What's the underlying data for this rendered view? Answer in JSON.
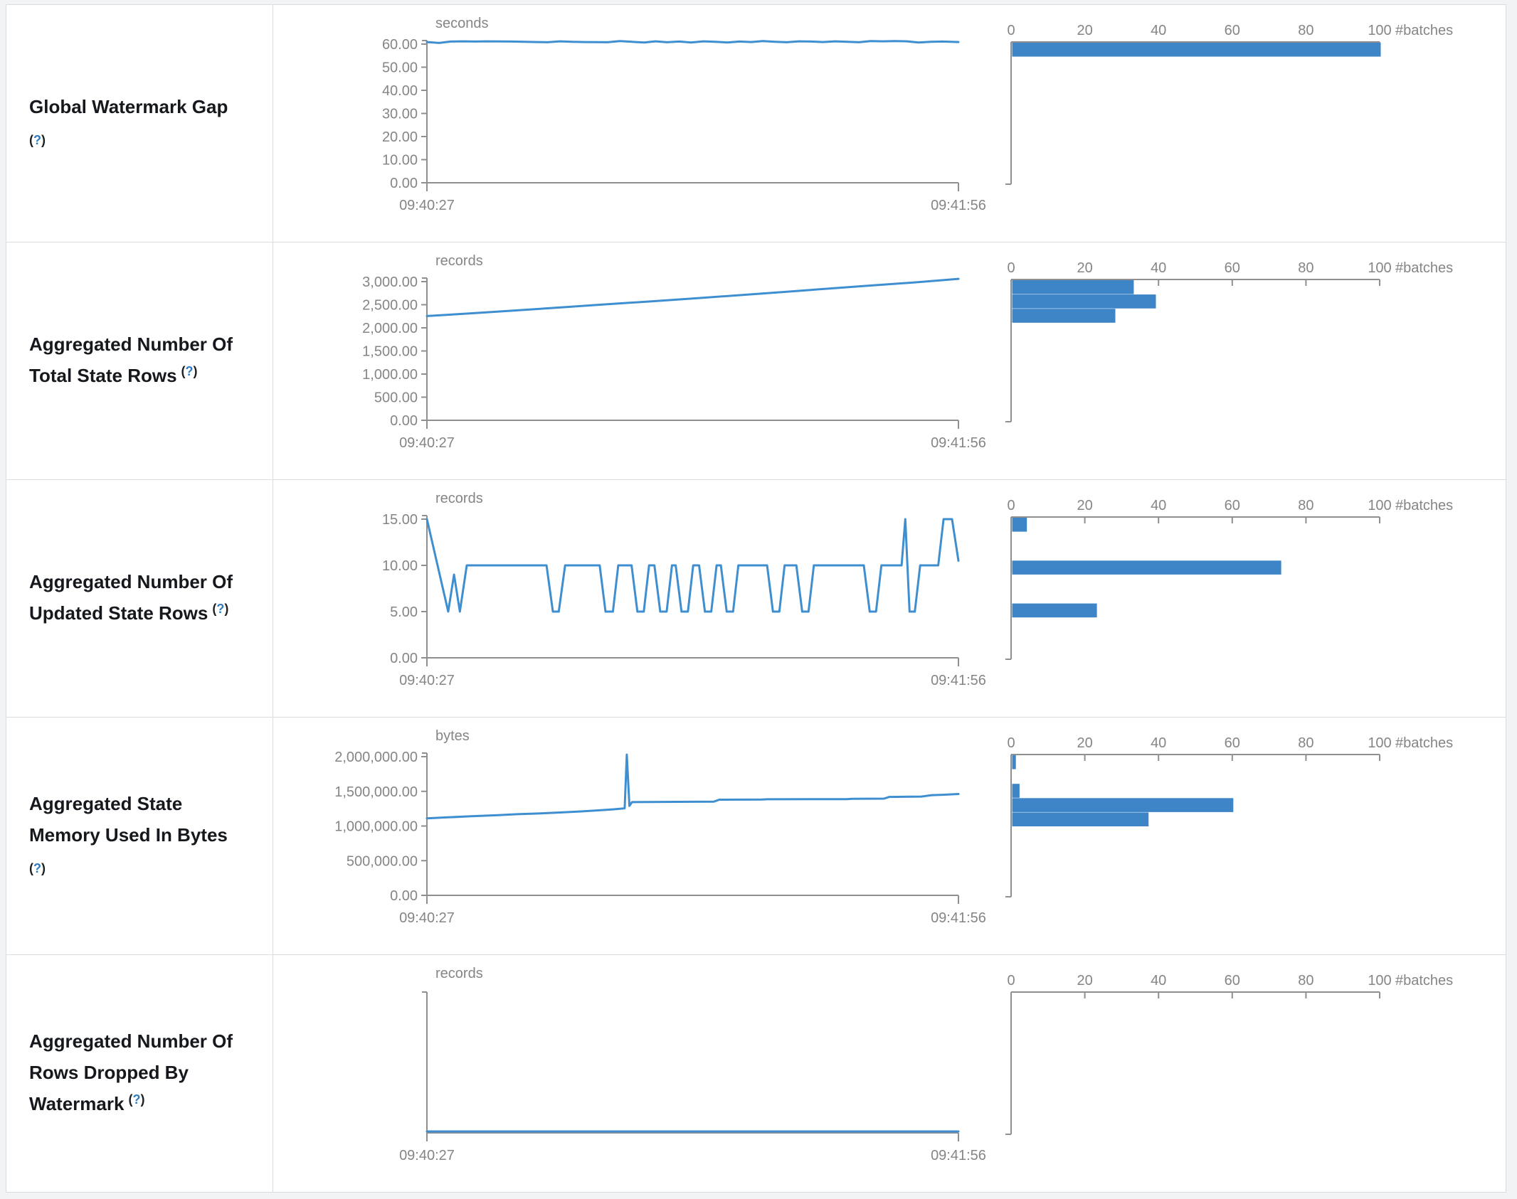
{
  "page": {
    "background": "#f1f3f5",
    "panel_background": "#ffffff",
    "border_color": "#d9dde2"
  },
  "colors": {
    "bar": "#3d85c6",
    "line": "#3e8ed0",
    "axis": "#8f8f8f",
    "axis_text": "#858585",
    "label_text": "#15181d",
    "help_link": "#2e7bbf"
  },
  "time_axis": {
    "start": "09:40:27",
    "end": "09:41:56"
  },
  "histogram_axis": {
    "tick_labels": [
      "0",
      "20",
      "40",
      "60",
      "80",
      "100"
    ],
    "tick_values": [
      0,
      20,
      40,
      60,
      80,
      100
    ],
    "label": "#batches",
    "max": 100
  },
  "chart_data": [
    {
      "label": "Global Watermark Gap",
      "label_lines": [
        "Global Watermark Gap"
      ],
      "help": "(?)",
      "help_inline": false,
      "type": "line",
      "unit": "seconds",
      "x_start": "09:40:27",
      "x_end": "09:41:56",
      "y_top": 60,
      "y_tick_values": [
        0,
        10,
        20,
        30,
        40,
        50,
        60
      ],
      "y_tick_labels": [
        "0.00",
        "10.00",
        "20.00",
        "30.00",
        "40.00",
        "50.00",
        "60.00"
      ],
      "series": [
        [
          0,
          60.9
        ],
        [
          0.023,
          60.5
        ],
        [
          0.045,
          61.1
        ],
        [
          0.068,
          61.2
        ],
        [
          0.09,
          61.1
        ],
        [
          0.113,
          61.2
        ],
        [
          0.136,
          61.15
        ],
        [
          0.159,
          61.1
        ],
        [
          0.182,
          61.0
        ],
        [
          0.205,
          60.9
        ],
        [
          0.227,
          60.8
        ],
        [
          0.25,
          61.2
        ],
        [
          0.273,
          61.0
        ],
        [
          0.295,
          60.9
        ],
        [
          0.318,
          60.85
        ],
        [
          0.34,
          60.8
        ],
        [
          0.363,
          61.3
        ],
        [
          0.386,
          61.0
        ],
        [
          0.409,
          60.7
        ],
        [
          0.43,
          61.2
        ],
        [
          0.452,
          60.8
        ],
        [
          0.475,
          61.1
        ],
        [
          0.497,
          60.7
        ],
        [
          0.52,
          61.2
        ],
        [
          0.542,
          61.0
        ],
        [
          0.565,
          60.7
        ],
        [
          0.588,
          61.1
        ],
        [
          0.61,
          60.9
        ],
        [
          0.632,
          61.3
        ],
        [
          0.655,
          61.0
        ],
        [
          0.677,
          60.8
        ],
        [
          0.7,
          61.2
        ],
        [
          0.723,
          61.1
        ],
        [
          0.745,
          60.9
        ],
        [
          0.768,
          61.2
        ],
        [
          0.79,
          61.0
        ],
        [
          0.813,
          60.8
        ],
        [
          0.835,
          61.3
        ],
        [
          0.858,
          61.2
        ],
        [
          0.88,
          61.3
        ],
        [
          0.903,
          61.2
        ],
        [
          0.925,
          60.7
        ],
        [
          0.948,
          61.0
        ],
        [
          0.97,
          61.1
        ],
        [
          1,
          60.9
        ]
      ],
      "hist_type": "bar",
      "hist_unit": "#batches",
      "hist_bars": [
        {
          "slot": 0,
          "count": 100
        }
      ]
    },
    {
      "label": "Aggregated Number Of Total State Rows",
      "label_lines": [
        "Aggregated Number Of",
        "Total State Rows"
      ],
      "help": "(?)",
      "help_inline": true,
      "type": "line",
      "unit": "records",
      "x_start": "09:40:27",
      "x_end": "09:41:56",
      "y_top": 3000,
      "y_tick_values": [
        0,
        500,
        1000,
        1500,
        2000,
        2500,
        3000
      ],
      "y_tick_labels": [
        "0.00",
        "500.00",
        "1,000.00",
        "1,500.00",
        "2,000.00",
        "2,500.00",
        "3,000.00"
      ],
      "series": [
        [
          0,
          2255
        ],
        [
          0.08,
          2310
        ],
        [
          0.16,
          2370
        ],
        [
          0.25,
          2440
        ],
        [
          0.33,
          2505
        ],
        [
          0.42,
          2570
        ],
        [
          0.5,
          2635
        ],
        [
          0.58,
          2700
        ],
        [
          0.67,
          2775
        ],
        [
          0.75,
          2845
        ],
        [
          0.83,
          2910
        ],
        [
          0.92,
          2985
        ],
        [
          1,
          3060
        ]
      ],
      "hist_type": "bar",
      "hist_unit": "#batches",
      "hist_bars": [
        {
          "slot": 0,
          "count": 33
        },
        {
          "slot": 1,
          "count": 39
        },
        {
          "slot": 2,
          "count": 28
        }
      ]
    },
    {
      "label": "Aggregated Number Of Updated State Rows",
      "label_lines": [
        "Aggregated Number Of",
        "Updated State Rows"
      ],
      "help": "(?)",
      "help_inline": true,
      "type": "line",
      "unit": "records",
      "x_start": "09:40:27",
      "x_end": "09:41:56",
      "y_top": 15,
      "y_tick_values": [
        0,
        5,
        10,
        15
      ],
      "y_tick_labels": [
        "0.00",
        "5.00",
        "10.00",
        "15.00"
      ],
      "series": [
        [
          0,
          15
        ],
        [
          0.04,
          5
        ],
        [
          0.051,
          9
        ],
        [
          0.062,
          5
        ],
        [
          0.075,
          10
        ],
        [
          0.225,
          10
        ],
        [
          0.237,
          5
        ],
        [
          0.248,
          5
        ],
        [
          0.26,
          10
        ],
        [
          0.325,
          10
        ],
        [
          0.336,
          5
        ],
        [
          0.35,
          5
        ],
        [
          0.36,
          10
        ],
        [
          0.385,
          10
        ],
        [
          0.396,
          5
        ],
        [
          0.408,
          5
        ],
        [
          0.418,
          10
        ],
        [
          0.428,
          10
        ],
        [
          0.439,
          5
        ],
        [
          0.451,
          5
        ],
        [
          0.461,
          10
        ],
        [
          0.468,
          10
        ],
        [
          0.479,
          5
        ],
        [
          0.491,
          5
        ],
        [
          0.501,
          10
        ],
        [
          0.512,
          10
        ],
        [
          0.523,
          5
        ],
        [
          0.535,
          5
        ],
        [
          0.545,
          10
        ],
        [
          0.553,
          10
        ],
        [
          0.564,
          5
        ],
        [
          0.576,
          5
        ],
        [
          0.586,
          10
        ],
        [
          0.64,
          10
        ],
        [
          0.651,
          5
        ],
        [
          0.663,
          5
        ],
        [
          0.673,
          10
        ],
        [
          0.695,
          10
        ],
        [
          0.706,
          5
        ],
        [
          0.718,
          5
        ],
        [
          0.728,
          10
        ],
        [
          0.822,
          10
        ],
        [
          0.833,
          5
        ],
        [
          0.845,
          5
        ],
        [
          0.855,
          10
        ],
        [
          0.893,
          10
        ],
        [
          0.9,
          15
        ],
        [
          0.908,
          5
        ],
        [
          0.918,
          5
        ],
        [
          0.928,
          10
        ],
        [
          0.962,
          10
        ],
        [
          0.972,
          15
        ],
        [
          0.988,
          15
        ],
        [
          1,
          10.5
        ]
      ],
      "hist_type": "bar",
      "hist_unit": "#batches",
      "hist_bars": [
        {
          "slot": 0,
          "count": 4
        },
        {
          "slot": 3,
          "count": 73
        },
        {
          "slot": 6,
          "count": 23
        }
      ]
    },
    {
      "label": "Aggregated State Memory Used In Bytes",
      "label_lines": [
        "Aggregated State",
        "Memory Used In Bytes"
      ],
      "help": "(?)",
      "help_inline": false,
      "type": "line",
      "unit": "bytes",
      "x_start": "09:40:27",
      "x_end": "09:41:56",
      "y_top": 2000000,
      "y_tick_values": [
        0,
        500000,
        1000000,
        1500000,
        2000000
      ],
      "y_tick_labels": [
        "0.00",
        "500,000.00",
        "1,000,000.00",
        "1,500,000.00",
        "2,000,000.00"
      ],
      "series": [
        [
          0,
          1110000
        ],
        [
          0.04,
          1125000
        ],
        [
          0.08,
          1140000
        ],
        [
          0.13,
          1155000
        ],
        [
          0.17,
          1170000
        ],
        [
          0.21,
          1180000
        ],
        [
          0.25,
          1195000
        ],
        [
          0.29,
          1210000
        ],
        [
          0.32,
          1225000
        ],
        [
          0.35,
          1240000
        ],
        [
          0.365,
          1250000
        ],
        [
          0.372,
          1255000
        ],
        [
          0.376,
          2030000
        ],
        [
          0.381,
          1290000
        ],
        [
          0.386,
          1345000
        ],
        [
          0.5,
          1350000
        ],
        [
          0.54,
          1352000
        ],
        [
          0.55,
          1380000
        ],
        [
          0.63,
          1383000
        ],
        [
          0.64,
          1386000
        ],
        [
          0.79,
          1388000
        ],
        [
          0.8,
          1392000
        ],
        [
          0.86,
          1395000
        ],
        [
          0.87,
          1420000
        ],
        [
          0.93,
          1425000
        ],
        [
          0.95,
          1445000
        ],
        [
          0.97,
          1450000
        ],
        [
          1,
          1462000
        ]
      ],
      "hist_type": "bar",
      "hist_unit": "#batches",
      "hist_bars": [
        {
          "slot": 0,
          "count": 1
        },
        {
          "slot": 2,
          "count": 2
        },
        {
          "slot": 3,
          "count": 60
        },
        {
          "slot": 4,
          "count": 37
        }
      ]
    },
    {
      "label": "Aggregated Number Of Rows Dropped By Watermark",
      "label_lines": [
        "Aggregated Number Of",
        "Rows Dropped By",
        "Watermark"
      ],
      "help": "(?)",
      "help_inline": true,
      "type": "line",
      "unit": "records",
      "x_start": "09:40:27",
      "x_end": "09:41:56",
      "y_top": 1,
      "y_tick_values": [],
      "y_tick_labels": [],
      "series": [
        [
          0,
          0
        ],
        [
          1,
          0
        ]
      ],
      "hist_type": "bar",
      "hist_unit": "#batches",
      "hist_bars": []
    }
  ]
}
